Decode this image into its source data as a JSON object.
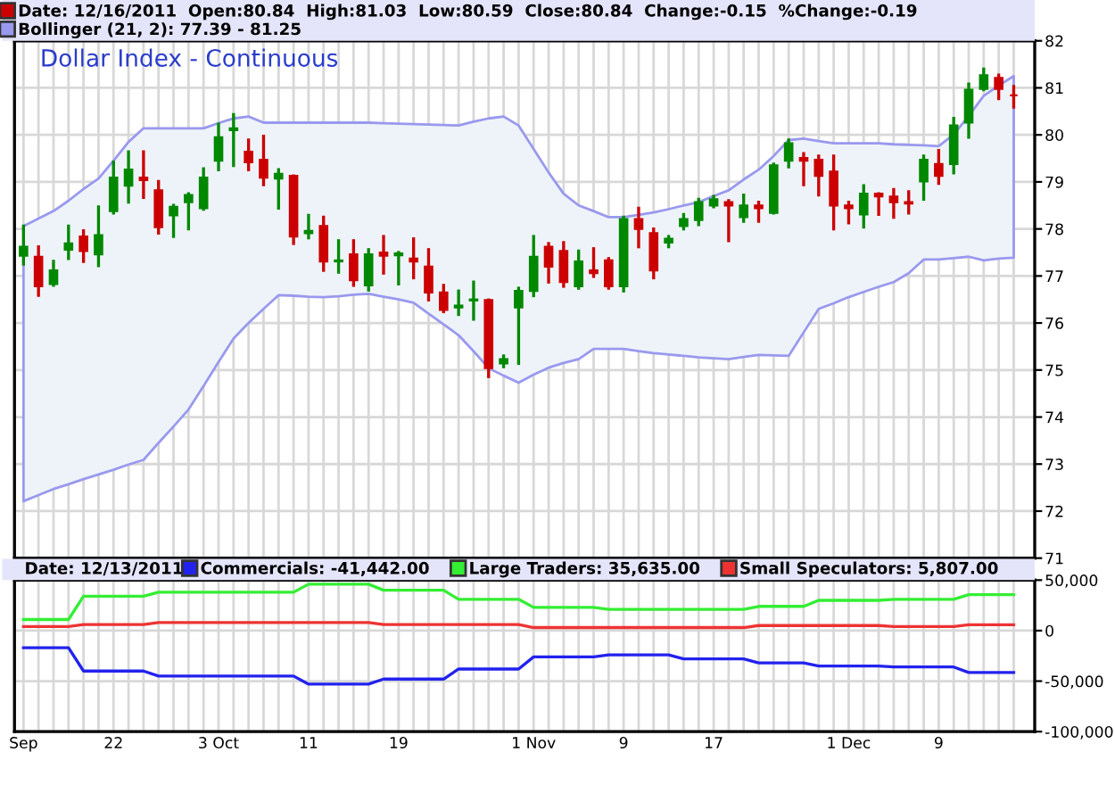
{
  "chart_data": [
    {
      "type": "candlestick",
      "title": "Dollar Index - Continuous",
      "categories": [
        null,
        null,
        null,
        null,
        null,
        null,
        null,
        null,
        null,
        null,
        null,
        null,
        null,
        null,
        null,
        null,
        null,
        null,
        null,
        null,
        null,
        null,
        null,
        null,
        null,
        null,
        null,
        null,
        null,
        null,
        null,
        null,
        null,
        null,
        null,
        null,
        null,
        null,
        null,
        null,
        null,
        null,
        null,
        null,
        null,
        null,
        null,
        null,
        null,
        null,
        null,
        null,
        null,
        null,
        null,
        null,
        null,
        null,
        null,
        null,
        null,
        null,
        null,
        null,
        null,
        null,
        null
      ],
      "series": [
        {
          "type": "candlestick",
          "name": "Date: 12/16/2011  Open:80.84  High:81.03  Low:80.59  Close:80.84  Change:-0.15  %Change:-0.19",
          "color": "#cc0000",
          "ohlc": [
            [
              77.43,
              78.06,
              77.25,
              77.62
            ],
            [
              77.41,
              77.62,
              76.59,
              76.78
            ],
            [
              76.83,
              77.31,
              76.8,
              77.12
            ],
            [
              77.56,
              78.06,
              77.37,
              77.69
            ],
            [
              77.84,
              77.96,
              77.31,
              77.53
            ],
            [
              77.46,
              78.47,
              77.22,
              77.87
            ],
            [
              78.38,
              79.42,
              78.34,
              79.09
            ],
            [
              78.92,
              79.64,
              78.57,
              79.26
            ],
            [
              79.09,
              79.64,
              78.67,
              79.04
            ],
            [
              78.82,
              79.01,
              77.91,
              78.04
            ],
            [
              78.29,
              78.5,
              77.84,
              78.47
            ],
            [
              78.57,
              78.75,
              78.0,
              78.72
            ],
            [
              78.44,
              79.28,
              78.42,
              79.09
            ],
            [
              79.45,
              80.23,
              79.26,
              79.95
            ],
            [
              80.1,
              80.43,
              79.35,
              80.14
            ],
            [
              79.64,
              79.89,
              79.26,
              79.42
            ],
            [
              79.47,
              79.97,
              78.94,
              79.09
            ],
            [
              79.07,
              79.26,
              78.44,
              79.17
            ],
            [
              79.13,
              79.13,
              77.69,
              77.84
            ],
            [
              77.91,
              78.29,
              77.81,
              77.96
            ],
            [
              78.06,
              78.25,
              77.12,
              77.31
            ],
            [
              77.31,
              77.75,
              77.08,
              77.33
            ],
            [
              77.46,
              77.75,
              76.8,
              76.91
            ],
            [
              76.8,
              77.56,
              76.7,
              77.46
            ],
            [
              77.5,
              77.84,
              77.06,
              77.43
            ],
            [
              77.44,
              77.5,
              76.83,
              77.48
            ],
            [
              77.37,
              77.79,
              76.96,
              77.31
            ],
            [
              77.2,
              77.56,
              76.49,
              76.65
            ],
            [
              76.65,
              76.8,
              76.24,
              76.28
            ],
            [
              76.33,
              76.68,
              76.18,
              76.37
            ],
            [
              76.48,
              76.87,
              76.08,
              76.5
            ],
            [
              76.49,
              76.49,
              74.86,
              75.04
            ],
            [
              75.14,
              75.3,
              75.07,
              75.23
            ],
            [
              76.33,
              76.74,
              75.14,
              76.68
            ],
            [
              76.68,
              77.84,
              76.58,
              77.41
            ],
            [
              77.62,
              77.69,
              76.87,
              77.2
            ],
            [
              77.53,
              77.71,
              76.78,
              76.87
            ],
            [
              76.78,
              77.53,
              76.74,
              77.31
            ],
            [
              77.12,
              77.58,
              76.99,
              77.06
            ],
            [
              77.33,
              77.37,
              76.74,
              76.78
            ],
            [
              76.78,
              78.25,
              76.68,
              78.21
            ],
            [
              78.21,
              78.44,
              77.62,
              78.0
            ],
            [
              77.91,
              78.0,
              76.96,
              77.12
            ],
            [
              77.71,
              77.84,
              77.62,
              77.79
            ],
            [
              78.06,
              78.31,
              78.0,
              78.21
            ],
            [
              78.19,
              78.63,
              78.09,
              78.57
            ],
            [
              78.5,
              78.69,
              78.47,
              78.63
            ],
            [
              78.57,
              78.6,
              77.75,
              78.5
            ],
            [
              78.25,
              78.72,
              78.16,
              78.5
            ],
            [
              78.5,
              78.57,
              78.16,
              78.44
            ],
            [
              78.34,
              79.38,
              78.34,
              79.35
            ],
            [
              79.45,
              79.89,
              79.32,
              79.82
            ],
            [
              79.51,
              79.6,
              78.94,
              79.45
            ],
            [
              79.47,
              79.55,
              78.72,
              79.13
            ],
            [
              79.22,
              79.55,
              78.0,
              78.5
            ],
            [
              78.5,
              78.57,
              78.13,
              78.44
            ],
            [
              78.31,
              78.92,
              78.04,
              78.75
            ],
            [
              78.75,
              78.75,
              78.31,
              78.69
            ],
            [
              78.69,
              78.84,
              78.25,
              78.57
            ],
            [
              78.57,
              78.79,
              78.34,
              78.54
            ],
            [
              79.01,
              79.55,
              78.63,
              79.47
            ],
            [
              79.38,
              79.67,
              78.97,
              79.13
            ],
            [
              79.38,
              80.35,
              79.19,
              80.2
            ],
            [
              80.26,
              81.08,
              79.95,
              80.96
            ],
            [
              80.98,
              81.4,
              80.96,
              81.27
            ],
            [
              81.21,
              81.27,
              80.77,
              80.98
            ],
            [
              80.84,
              81.03,
              80.59,
              80.84
            ]
          ],
          "colors": [
            "#008800",
            "#cc0000",
            "#008800",
            "#008800",
            "#cc0000",
            "#008800",
            "#008800",
            "#008800",
            "#cc0000",
            "#cc0000",
            "#008800",
            "#008800",
            "#008800",
            "#008800",
            "#008800",
            "#cc0000",
            "#cc0000",
            "#008800",
            "#cc0000",
            "#008800",
            "#cc0000",
            "#008800",
            "#cc0000",
            "#008800",
            "#cc0000",
            "#008800",
            "#cc0000",
            "#cc0000",
            "#cc0000",
            "#008800",
            "#008800",
            "#cc0000",
            "#008800",
            "#008800",
            "#008800",
            "#cc0000",
            "#cc0000",
            "#008800",
            "#cc0000",
            "#cc0000",
            "#008800",
            "#cc0000",
            "#cc0000",
            "#008800",
            "#008800",
            "#008800",
            "#008800",
            "#cc0000",
            "#008800",
            "#cc0000",
            "#008800",
            "#008800",
            "#cc0000",
            "#cc0000",
            "#cc0000",
            "#cc0000",
            "#008800",
            "#cc0000",
            "#cc0000",
            "#cc0000",
            "#008800",
            "#cc0000",
            "#008800",
            "#008800",
            "#008800",
            "#cc0000",
            "#cc0000"
          ]
        },
        {
          "type": "line",
          "name": "Bollinger (21, 2): 77.39 - 81.25",
          "color": "#9999ee",
          "values": [
            null,
            null,
            null,
            null,
            null,
            null,
            null,
            null,
            null,
            null,
            null,
            null,
            null,
            null,
            null,
            null,
            null,
            null,
            null,
            null,
            null,
            null,
            null,
            null,
            null,
            null,
            null,
            null,
            null,
            null,
            null,
            null,
            null,
            null,
            null,
            null,
            null,
            null,
            null,
            null,
            null,
            null,
            null,
            null,
            null,
            null,
            null,
            null,
            null,
            null,
            null,
            null,
            null,
            null,
            null,
            null,
            null,
            null,
            null,
            null,
            null,
            null,
            null,
            null,
            null,
            null,
            null
          ],
          "upper": [
            78.06,
            78.22,
            78.38,
            78.6,
            78.85,
            79.07,
            79.45,
            79.85,
            80.14,
            80.14,
            80.14,
            80.14,
            80.14,
            80.25,
            80.35,
            80.39,
            80.26,
            80.26,
            80.26,
            80.26,
            80.26,
            80.26,
            80.26,
            80.26,
            80.25,
            80.24,
            80.23,
            80.22,
            80.21,
            80.2,
            80.28,
            80.35,
            80.39,
            80.2,
            79.7,
            79.2,
            78.75,
            78.5,
            78.38,
            78.25,
            78.25,
            78.3,
            78.35,
            78.42,
            78.5,
            78.57,
            78.7,
            78.82,
            79.05,
            79.26,
            79.55,
            79.89,
            79.92,
            79.87,
            79.82,
            79.82,
            79.82,
            79.82,
            79.8,
            79.79,
            79.78,
            79.76,
            80.01,
            80.4,
            80.83,
            81.05,
            81.25
          ],
          "lower": [
            72.21,
            72.34,
            72.47,
            72.57,
            72.68,
            72.78,
            72.88,
            72.99,
            73.09,
            73.45,
            73.8,
            74.16,
            74.66,
            75.17,
            75.67,
            76.0,
            76.3,
            76.59,
            76.58,
            76.56,
            76.55,
            76.57,
            76.6,
            76.62,
            76.56,
            76.5,
            76.43,
            76.2,
            75.97,
            75.74,
            75.4,
            75.04,
            74.88,
            74.73,
            74.9,
            75.05,
            75.15,
            75.23,
            75.45,
            75.45,
            75.45,
            75.4,
            75.36,
            75.33,
            75.3,
            75.27,
            75.25,
            75.23,
            75.28,
            75.32,
            75.31,
            75.3,
            75.8,
            76.3,
            76.42,
            76.55,
            76.66,
            76.77,
            76.87,
            77.06,
            77.35,
            77.35,
            77.38,
            77.41,
            77.33,
            77.37,
            77.39
          ]
        }
      ],
      "ylim": [
        71,
        82
      ],
      "yticks": [
        71,
        72,
        73,
        74,
        75,
        76,
        77,
        78,
        79,
        80,
        81,
        82
      ],
      "grid": true,
      "legend": "top left",
      "tick_labels": "y"
    },
    {
      "type": "line",
      "categories": [
        "Sep",
        null,
        null,
        null,
        null,
        null,
        "22",
        null,
        null,
        null,
        null,
        null,
        null,
        "3 Oct",
        null,
        null,
        null,
        null,
        null,
        "11",
        null,
        null,
        null,
        null,
        null,
        "19",
        null,
        null,
        null,
        null,
        null,
        null,
        null,
        null,
        "1 Nov",
        null,
        null,
        null,
        null,
        null,
        "9",
        null,
        null,
        null,
        null,
        null,
        "17",
        null,
        null,
        null,
        null,
        null,
        null,
        null,
        null,
        "1 Dec",
        null,
        null,
        null,
        null,
        null,
        "9",
        null,
        null,
        null,
        null,
        null
      ],
      "annotations": [
        "Date: 12/13/2011"
      ],
      "series": [
        {
          "name": "Commercials: -41,442.00",
          "color": "#2222ee",
          "values": [
            -17000,
            -17000,
            -17000,
            -17000,
            -40000,
            -40000,
            -40000,
            -40000,
            -40000,
            -45000,
            -45000,
            -45000,
            -45000,
            -45000,
            -45000,
            -45000,
            -45000,
            -45000,
            -45000,
            -53000,
            -53000,
            -53000,
            -53000,
            -53000,
            -48000,
            -48000,
            -48000,
            -48000,
            -48000,
            -38000,
            -38000,
            -38000,
            -38000,
            -38000,
            -26000,
            -26000,
            -26000,
            -26000,
            -26000,
            -24000,
            -24000,
            -24000,
            -24000,
            -24000,
            -28000,
            -28000,
            -28000,
            -28000,
            -28000,
            -32000,
            -32000,
            -32000,
            -32000,
            -35000,
            -35000,
            -35000,
            -35000,
            -35000,
            -36000,
            -36000,
            -36000,
            -36000,
            -36000,
            -41442,
            -41442,
            -41442,
            -41442
          ]
        },
        {
          "name": "Large Traders: 35,635.00",
          "color": "#33ee33",
          "values": [
            11000,
            11000,
            11000,
            11000,
            34000,
            34000,
            34000,
            34000,
            34000,
            38000,
            38000,
            38000,
            38000,
            38000,
            38000,
            38000,
            38000,
            38000,
            38000,
            46000,
            46000,
            46000,
            46000,
            46000,
            40000,
            40000,
            40000,
            40000,
            40000,
            31000,
            31000,
            31000,
            31000,
            31000,
            23000,
            23000,
            23000,
            23000,
            23000,
            21000,
            21000,
            21000,
            21000,
            21000,
            21000,
            21000,
            21000,
            21000,
            21000,
            24000,
            24000,
            24000,
            24000,
            30000,
            30000,
            30000,
            30000,
            30000,
            31000,
            31000,
            31000,
            31000,
            31000,
            35635,
            35635,
            35635,
            35635
          ]
        },
        {
          "name": "Small Speculators: 5,807.00",
          "color": "#ee3333",
          "values": [
            4000,
            4000,
            4000,
            4000,
            6000,
            6000,
            6000,
            6000,
            6000,
            8000,
            8000,
            8000,
            8000,
            8000,
            8000,
            8000,
            8000,
            8000,
            8000,
            8000,
            8000,
            8000,
            8000,
            8000,
            6000,
            6000,
            6000,
            6000,
            6000,
            6000,
            6000,
            6000,
            6000,
            6000,
            3000,
            3000,
            3000,
            3000,
            3000,
            3000,
            3000,
            3000,
            3000,
            3000,
            3000,
            3000,
            3000,
            3000,
            3000,
            5000,
            5000,
            5000,
            5000,
            5000,
            5000,
            5000,
            5000,
            5000,
            4000,
            4000,
            4000,
            4000,
            4000,
            5807,
            5807,
            5807,
            5807
          ]
        }
      ],
      "ylim": [
        -100000,
        50000
      ],
      "yticks": [
        {
          "value": 50000,
          "label": "50,000"
        },
        0,
        {
          "value": -50000,
          "label": "-50,000"
        },
        {
          "value": -100000,
          "label": "-100,000"
        }
      ],
      "grid": true,
      "legend": "top"
    }
  ]
}
